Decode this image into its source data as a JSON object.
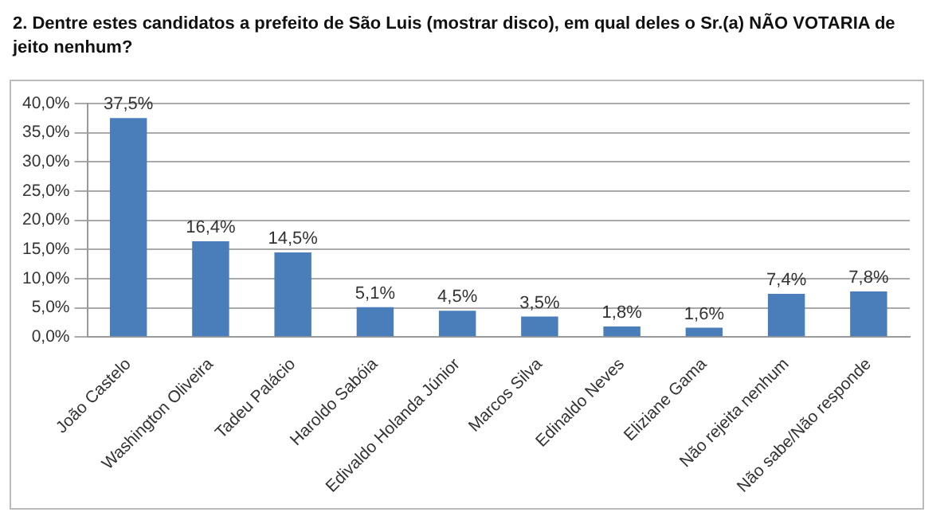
{
  "chart_data": {
    "type": "bar",
    "title": "2. Dentre estes  candidatos a prefeito de São Luis (mostrar disco),  em qual deles  o Sr.(a)  NÃO VOTARIA de jeito nenhum?",
    "categories": [
      "João Castelo",
      "Washington Oliveira",
      "Tadeu Palácio",
      "Haroldo Sabóia",
      "Edivaldo Holanda Júnior",
      "Marcos Silva",
      "Edinaldo Neves",
      "Eliziane Gama",
      "Não rejeita nenhum",
      "Não sabe/Não responde"
    ],
    "values": [
      37.5,
      16.4,
      14.5,
      5.1,
      4.5,
      3.5,
      1.8,
      1.6,
      7.4,
      7.8
    ],
    "value_labels": [
      "37,5%",
      "16,4%",
      "14,5%",
      "5,1%",
      "4,5%",
      "3,5%",
      "1,8%",
      "1,6%",
      "7,4%",
      "7,8%"
    ],
    "color": "#4a7ebb",
    "ylim": [
      0,
      40
    ],
    "yticks": [
      {
        "value": 0,
        "label": "0,0%"
      },
      {
        "value": 5,
        "label": "5,0%"
      },
      {
        "value": 10,
        "label": "10,0%"
      },
      {
        "value": 15,
        "label": "15,0%"
      },
      {
        "value": 20,
        "label": "20,0%"
      },
      {
        "value": 25,
        "label": "25,0%"
      },
      {
        "value": 30,
        "label": "30,0%"
      },
      {
        "value": 35,
        "label": "35,0%"
      },
      {
        "value": 40,
        "label": "40,0%"
      }
    ],
    "grid": "y",
    "legend": false
  }
}
